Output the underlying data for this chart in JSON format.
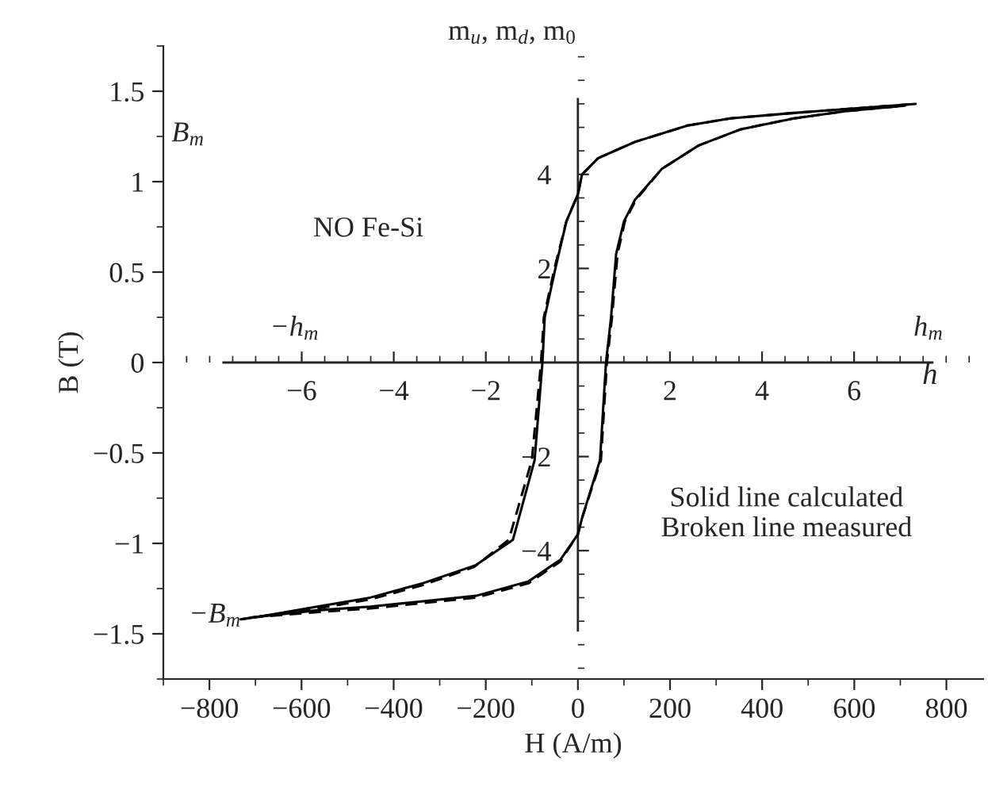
{
  "chart_data": {
    "type": "line",
    "xlabel": "H (A/m)",
    "ylabel": "B (T)",
    "x2label": "h",
    "y2label": "m$_{u}$, m$_{d}$, m$_{0}$",
    "xlim": [
      -900,
      880
    ],
    "ylim": [
      -1.75,
      1.75
    ],
    "xticks": [
      -800,
      -600,
      -400,
      -200,
      0,
      200,
      400,
      600,
      800
    ],
    "yticks": [
      -1.5,
      -1,
      -0.5,
      0,
      0.5,
      1,
      1.5
    ],
    "x2lim": [
      -7.7,
      7.7
    ],
    "y2lim": [
      -5.7,
      5.6
    ],
    "x2ticks": [
      -6,
      -4,
      -2,
      2,
      4,
      6
    ],
    "y2ticks": [
      -4,
      -2,
      2,
      4
    ],
    "series": [
      {
        "line_style": "solid",
        "color": "#000000",
        "x": [
          -732,
          -680,
          -566,
          -451,
          -336,
          -221,
          -141,
          -94,
          -77,
          -72,
          -48,
          -25,
          0,
          9,
          44,
          124,
          238,
          331,
          469,
          733
        ],
        "values": [
          -1.42,
          -1.4,
          -1.35,
          -1.3,
          -1.22,
          -1.12,
          -0.98,
          -0.54,
          0,
          0.25,
          0.53,
          0.78,
          0.93,
          1.04,
          1.13,
          1.22,
          1.31,
          1.35,
          1.38,
          1.43
        ]
      },
      {
        "line_style": "solid",
        "color": "#000000",
        "x": [
          -710,
          -566,
          -451,
          -336,
          -221,
          -107,
          -38,
          0,
          9,
          48,
          61,
          72,
          83,
          100,
          124,
          182,
          262,
          354,
          469,
          583,
          710
        ],
        "values": [
          -1.41,
          -1.37,
          -1.35,
          -1.32,
          -1.29,
          -1.21,
          -1.09,
          -0.95,
          -0.86,
          -0.54,
          0,
          0.25,
          0.6,
          0.78,
          0.9,
          1.07,
          1.2,
          1.29,
          1.35,
          1.39,
          1.42
        ]
      },
      {
        "line_style": "dashed",
        "color": "#000000",
        "x": [
          -732,
          -680,
          -566,
          -451,
          -336,
          -225,
          -150,
          -100,
          -80,
          -74,
          -50,
          -25,
          0,
          9,
          44,
          124,
          238,
          331,
          469,
          733
        ],
        "values": [
          -1.42,
          -1.4,
          -1.36,
          -1.31,
          -1.23,
          -1.13,
          -0.98,
          -0.54,
          0,
          0.25,
          0.53,
          0.78,
          0.93,
          1.04,
          1.13,
          1.22,
          1.31,
          1.35,
          1.38,
          1.43
        ]
      },
      {
        "line_style": "dashed",
        "color": "#000000",
        "x": [
          -710,
          -566,
          -451,
          -336,
          -221,
          -107,
          -38,
          0,
          9,
          50,
          63,
          74,
          86,
          102,
          126,
          182,
          262,
          354,
          469,
          583,
          710
        ],
        "values": [
          -1.41,
          -1.38,
          -1.36,
          -1.33,
          -1.3,
          -1.22,
          -1.1,
          -0.95,
          -0.86,
          -0.54,
          0,
          0.25,
          0.6,
          0.78,
          0.9,
          1.07,
          1.2,
          1.29,
          1.35,
          1.39,
          1.42
        ]
      }
    ],
    "annotations": [
      "NO Fe-Si",
      "Solid line calculated\nBroken line measured",
      "B$_{m}$",
      "−B$_{m}$",
      "h$_{m}$",
      "−h$_{m}$"
    ],
    "grid": false,
    "legend": false
  }
}
